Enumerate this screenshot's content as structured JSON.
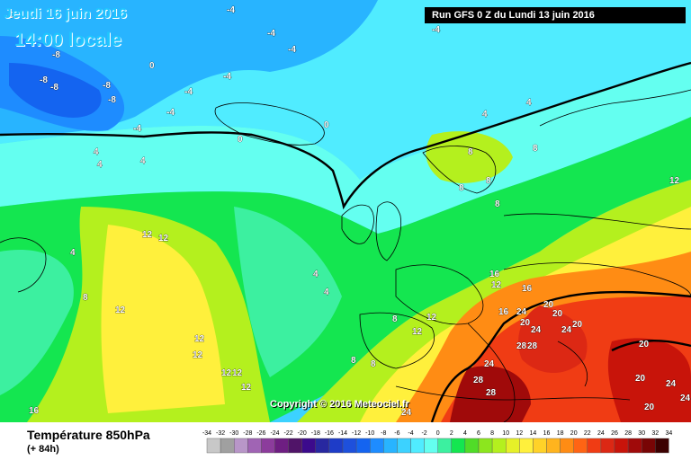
{
  "header": {
    "date_label": "Jeudi 16 juin 2016",
    "time_label": "14:00 locale",
    "run_label": "Run GFS 0 Z du Lundi 13 juin 2016"
  },
  "copyright": "Copyright © 2016 Meteociel.fr",
  "footer": {
    "parameter": "Température 850hPa",
    "lead_time": "(+ 84h)"
  },
  "legend": {
    "ticks": [
      "-34",
      "-32",
      "-30",
      "-28",
      "-26",
      "-24",
      "-22",
      "-20",
      "-18",
      "-16",
      "-14",
      "-12",
      "-10",
      "-8",
      "-6",
      "-4",
      "-2",
      "0",
      "2",
      "4",
      "6",
      "8",
      "10",
      "12",
      "14",
      "16",
      "18",
      "20",
      "22",
      "24",
      "26",
      "28",
      "30",
      "32",
      "34"
    ],
    "colors": [
      "#c8c8c8",
      "#a0a0a0",
      "#b896c8",
      "#a064b4",
      "#8c3c9c",
      "#6e1e82",
      "#501468",
      "#3c0a8c",
      "#2828a0",
      "#1e3cc8",
      "#1e50dc",
      "#1464f0",
      "#1e8cff",
      "#28b4ff",
      "#3cd2ff",
      "#50ecff",
      "#64fff0",
      "#3cf0a0",
      "#14e650",
      "#50dc28",
      "#8ce61e",
      "#b4f01e",
      "#e6f028",
      "#fff03c",
      "#ffd228",
      "#ffb41e",
      "#ff8c14",
      "#ff6414",
      "#f03c14",
      "#dc2814",
      "#c8140a",
      "#a00a0a",
      "#780505",
      "#3c0000"
    ]
  },
  "map_labels": [
    {
      "v": "-4"
    },
    {
      "v": "-4"
    },
    {
      "v": "-4"
    },
    {
      "v": "-4"
    },
    {
      "v": "-4"
    },
    {
      "v": "-4"
    },
    {
      "v": "-4"
    },
    {
      "v": "-4"
    },
    {
      "v": "-8"
    },
    {
      "v": "-8"
    },
    {
      "v": "-8"
    },
    {
      "v": "-8"
    },
    {
      "v": "-8"
    },
    {
      "v": "0"
    },
    {
      "v": "0"
    },
    {
      "v": "0"
    },
    {
      "v": "0"
    },
    {
      "v": "4"
    },
    {
      "v": "4"
    },
    {
      "v": "4"
    },
    {
      "v": "4"
    },
    {
      "v": "4"
    },
    {
      "v": "4"
    },
    {
      "v": "4"
    },
    {
      "v": "4"
    },
    {
      "v": "8"
    },
    {
      "v": "8"
    },
    {
      "v": "8"
    },
    {
      "v": "8"
    },
    {
      "v": "8"
    },
    {
      "v": "8"
    },
    {
      "v": "8"
    },
    {
      "v": "8"
    },
    {
      "v": "8"
    },
    {
      "v": "12"
    },
    {
      "v": "12"
    },
    {
      "v": "12"
    },
    {
      "v": "12"
    },
    {
      "v": "12"
    },
    {
      "v": "12"
    },
    {
      "v": "12"
    },
    {
      "v": "12"
    },
    {
      "v": "12"
    },
    {
      "v": "12"
    },
    {
      "v": "12"
    },
    {
      "v": "12"
    },
    {
      "v": "16"
    },
    {
      "v": "16"
    },
    {
      "v": "16"
    },
    {
      "v": "16"
    },
    {
      "v": "20"
    },
    {
      "v": "20"
    },
    {
      "v": "20"
    },
    {
      "v": "20"
    },
    {
      "v": "20"
    },
    {
      "v": "20"
    },
    {
      "v": "20"
    },
    {
      "v": "24"
    },
    {
      "v": "24"
    },
    {
      "v": "24"
    },
    {
      "v": "24"
    },
    {
      "v": "24"
    },
    {
      "v": "24"
    },
    {
      "v": "24"
    },
    {
      "v": "28"
    },
    {
      "v": "28"
    },
    {
      "v": "28"
    },
    {
      "v": "28"
    }
  ]
}
